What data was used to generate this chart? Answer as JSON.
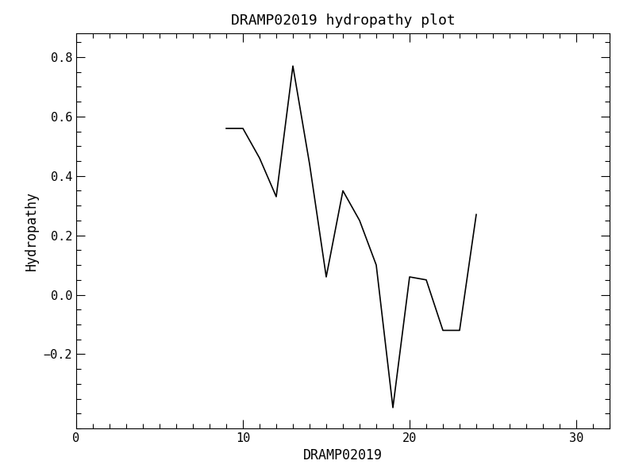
{
  "x": [
    9,
    10,
    11,
    12,
    13,
    14,
    15,
    16,
    17,
    18,
    19,
    20,
    21,
    22,
    23,
    24
  ],
  "y": [
    0.56,
    0.56,
    0.46,
    0.33,
    0.77,
    0.44,
    0.06,
    0.35,
    0.25,
    0.1,
    -0.38,
    0.06,
    0.05,
    -0.12,
    -0.12,
    0.27
  ],
  "title": "DRAMP02019 hydropathy plot",
  "xlabel": "DRAMP02019",
  "ylabel": "Hydropathy",
  "xlim": [
    0,
    32
  ],
  "ylim": [
    -0.45,
    0.88
  ],
  "xticks": [
    0,
    10,
    20,
    30
  ],
  "yticks": [
    -0.2,
    0.0,
    0.2,
    0.4,
    0.6,
    0.8
  ],
  "line_color": "black",
  "line_width": 1.2,
  "bg_color": "white",
  "title_fontsize": 13,
  "label_fontsize": 12,
  "tick_fontsize": 11
}
